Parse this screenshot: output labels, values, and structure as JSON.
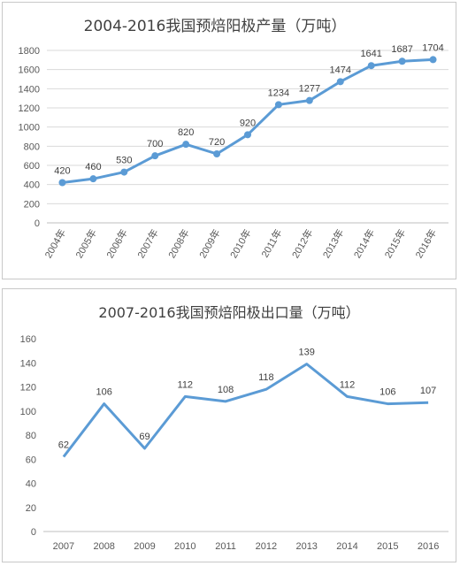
{
  "chart_data": [
    {
      "type": "line",
      "title": "2004-2016我国预焙阳极产量（万吨）",
      "categories": [
        "2004年",
        "2005年",
        "2006年",
        "2007年",
        "2008年",
        "2009年",
        "2010年",
        "2011年",
        "2012年",
        "2013年",
        "2014年",
        "2015年",
        "2016年"
      ],
      "values": [
        420,
        460,
        530,
        700,
        820,
        720,
        920,
        1234,
        1277,
        1474,
        1641,
        1687,
        1704
      ],
      "yticks": [
        0,
        200,
        400,
        600,
        800,
        1000,
        1200,
        1400,
        1600,
        1800
      ],
      "ylim": [
        0,
        1800
      ],
      "xlabel": "",
      "ylabel": "",
      "grid": true,
      "markers": true,
      "color": "#5b9bd5"
    },
    {
      "type": "line",
      "title": "2007-2016我国预焙阳极出口量（万吨）",
      "categories": [
        "2007",
        "2008",
        "2009",
        "2010",
        "2011",
        "2012",
        "2013",
        "2014",
        "2015",
        "2016"
      ],
      "values": [
        62,
        106,
        69,
        112,
        108,
        118,
        139,
        112,
        106,
        107
      ],
      "yticks": [
        0,
        20,
        40,
        60,
        80,
        100,
        120,
        140,
        160
      ],
      "ylim": [
        0,
        160
      ],
      "xlabel": "",
      "ylabel": "",
      "grid": false,
      "markers": false,
      "color": "#5b9bd5"
    }
  ]
}
